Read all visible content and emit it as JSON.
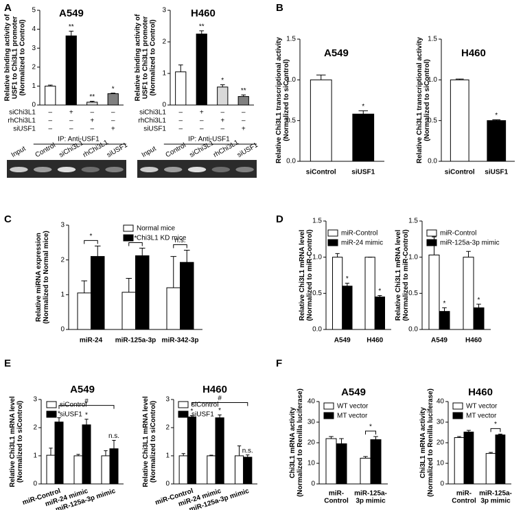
{
  "panel_labels": [
    "A",
    "B",
    "C",
    "D",
    "E",
    "F"
  ],
  "chart_data": [
    {
      "type": "bar",
      "title": "A549",
      "ylabel": [
        "Relative binding activity of",
        "USF1 to Chi3L1 promoter",
        "(Normalized to Control)"
      ],
      "categories": [
        null,
        null,
        null,
        null
      ],
      "values": [
        1.0,
        3.65,
        0.15,
        0.6
      ],
      "errors": [
        0.05,
        0.25,
        0.05,
        0.03
      ],
      "colors": [
        "#ffffff",
        "#000000",
        "#d9d9d9",
        "#808080"
      ],
      "annotations": [
        null,
        "**",
        "**",
        "*"
      ],
      "ylim": [
        0,
        5
      ],
      "yticks": [
        0,
        1,
        2,
        3,
        4,
        5
      ],
      "conditions": [
        {
          "name": "siChi3L1",
          "signs": [
            "–",
            "+",
            "–",
            "–"
          ]
        },
        {
          "name": "rhChi3L1",
          "signs": [
            "–",
            "–",
            "+",
            "–"
          ]
        },
        {
          "name": "siUSF1",
          "signs": [
            "–",
            "–",
            "–",
            "+"
          ]
        }
      ],
      "gel": {
        "header": "IP: Anti-USF1",
        "lanes": [
          "Input",
          "Control",
          "siChi3L1",
          "rhChi3L1",
          "siUSF1"
        ]
      }
    },
    {
      "type": "bar",
      "title": "H460",
      "ylabel": [
        "Relative binding activity of",
        "USF1 to Chi3L1 promoter",
        "(Normalized to Control)"
      ],
      "categories": [
        null,
        null,
        null,
        null
      ],
      "values": [
        1.05,
        2.25,
        0.57,
        0.27
      ],
      "errors": [
        0.22,
        0.1,
        0.07,
        0.05
      ],
      "colors": [
        "#ffffff",
        "#000000",
        "#d9d9d9",
        "#808080"
      ],
      "annotations": [
        null,
        "**",
        "*",
        "**"
      ],
      "ylim": [
        0,
        3
      ],
      "yticks": [
        0,
        1,
        2,
        3
      ],
      "conditions": [
        {
          "name": "siChi3L1",
          "signs": [
            "–",
            "+",
            "–",
            "–"
          ]
        },
        {
          "name": "rhChi3L1",
          "signs": [
            "–",
            "–",
            "+",
            "–"
          ]
        },
        {
          "name": "siUSF1",
          "signs": [
            "–",
            "–",
            "–",
            "+"
          ]
        }
      ],
      "gel": {
        "header": "IP: Anti-USF1",
        "lanes": [
          "Input",
          "Control",
          "siChi3L1",
          "rhChi3L1",
          "siUSF1"
        ]
      }
    },
    {
      "type": "bar",
      "title": "A549",
      "ylabel": [
        "Relative Chi3L1 transcriptional activity",
        "(Normalized to siControl)"
      ],
      "categories": [
        "siControl",
        "siUSF1"
      ],
      "values": [
        1.0,
        0.58
      ],
      "errors": [
        0.06,
        0.04
      ],
      "colors": [
        "#ffffff",
        "#000000"
      ],
      "annotations": [
        null,
        "*"
      ],
      "ylim": [
        0,
        1.5
      ],
      "yticks": [
        {
          "value": 0,
          "label": "0.0"
        },
        0.5,
        {
          "value": 1,
          "label": "1.0"
        },
        1.5
      ]
    },
    {
      "type": "bar",
      "title": "H460",
      "ylabel": [
        "Relative Chi3L1 transcriptional activity",
        "(Normalized to siControl)"
      ],
      "categories": [
        "siControl",
        "siUSF1"
      ],
      "values": [
        1.0,
        0.5
      ],
      "errors": [
        0.01,
        0.01
      ],
      "colors": [
        "#ffffff",
        "#000000"
      ],
      "annotations": [
        null,
        "*"
      ],
      "ylim": [
        0,
        1.5
      ],
      "yticks": [
        {
          "value": 0,
          "label": "0.0"
        },
        0.5,
        {
          "value": 1,
          "label": "1.0"
        },
        1.5
      ]
    },
    {
      "type": "bar",
      "ylabel": [
        "Relative miRNA expression",
        "(Normalized to Normal mice)"
      ],
      "categories": [
        "miR-24",
        "miR-125a-3p",
        "miR-342-3p"
      ],
      "series": [
        {
          "name": "Normal mice",
          "color": "#ffffff",
          "values": [
            1.05,
            1.07,
            1.2
          ],
          "errors": [
            0.35,
            0.4,
            0.9
          ]
        },
        {
          "name": "Chi3L1 KD mice",
          "color": "#000000",
          "values": [
            2.1,
            2.12,
            1.93
          ],
          "errors": [
            0.3,
            0.22,
            0.35
          ]
        }
      ],
      "brackets": [
        {
          "label": "*",
          "from": [
            0,
            0
          ],
          "to": [
            1,
            0
          ]
        },
        {
          "label": "*",
          "from": [
            0,
            1
          ],
          "to": [
            1,
            1
          ]
        },
        {
          "label": "n.s.",
          "from": [
            0,
            2
          ],
          "to": [
            1,
            2
          ]
        }
      ],
      "ylim": [
        0,
        3
      ],
      "yticks": [
        0,
        1,
        2,
        3
      ]
    },
    {
      "type": "bar",
      "ylabel": [
        "Relative Chi3L1 mRNA level",
        "(Normalized to miR-Control)"
      ],
      "categories": [
        "A549",
        "H460"
      ],
      "series": [
        {
          "name": "miR-Control",
          "color": "#ffffff",
          "values": [
            1.0,
            1.0
          ],
          "errors": [
            0.05,
            0
          ]
        },
        {
          "name": "miR-24 mimic",
          "color": "#000000",
          "values": [
            0.6,
            0.45
          ],
          "errors": [
            0.04,
            0.02
          ],
          "annotations": [
            "*",
            "*"
          ]
        }
      ],
      "ylim": [
        0,
        1.5
      ],
      "yticks": [
        {
          "value": 0,
          "label": "0.0"
        },
        0.5,
        {
          "value": 1,
          "label": "1.0"
        },
        1.5
      ]
    },
    {
      "type": "bar",
      "ylabel": [
        "Relative Chi3L1 mRNA level",
        "(Normalized to miR-Control)"
      ],
      "categories": [
        "A549",
        "H460"
      ],
      "series": [
        {
          "name": "miR-Control",
          "color": "#ffffff",
          "values": [
            1.03,
            1.0
          ],
          "errors": [
            0.25,
            0.08
          ]
        },
        {
          "name": "miR-125a-3p mimic",
          "color": "#000000",
          "values": [
            0.25,
            0.3
          ],
          "errors": [
            0.05,
            0.05
          ],
          "annotations": [
            "*",
            "*"
          ]
        }
      ],
      "ylim": [
        0,
        1.5
      ],
      "yticks": [
        {
          "value": 0,
          "label": "0.0"
        },
        0.5,
        {
          "value": 1,
          "label": "1.0"
        },
        1.5
      ]
    },
    {
      "type": "bar",
      "title": "A549",
      "ylabel": [
        "Relative Chi3L1 mRNA level",
        "(Normalized to siControl)"
      ],
      "categories": [
        "miR-Control",
        "miR-24 mimic",
        "miR-125a-3p mimic"
      ],
      "series": [
        {
          "name": "siControl",
          "color": "#ffffff",
          "values": [
            1.02,
            1.0,
            1.0
          ],
          "errors": [
            0.25,
            0.05,
            0.18
          ]
        },
        {
          "name": "siUSF1",
          "color": "#000000",
          "values": [
            2.2,
            2.1,
            1.25
          ],
          "errors": [
            0.15,
            0.2,
            0.3
          ],
          "annotations": [
            "*",
            "*",
            "n.s."
          ]
        }
      ],
      "brackets": [
        {
          "label": "#",
          "from": [
            1,
            0
          ],
          "to": [
            1,
            2
          ]
        }
      ],
      "ylim": [
        0,
        3
      ],
      "yticks": [
        0,
        1,
        2,
        3
      ]
    },
    {
      "type": "bar",
      "title": "H460",
      "ylabel": [
        "Relative Chi3L1 mRNA level",
        "(Normalized to siControl)"
      ],
      "categories": [
        "miR-Control",
        "miR-24 mimic",
        "miR-125a-3p mimic"
      ],
      "series": [
        {
          "name": "siControl",
          "color": "#ffffff",
          "values": [
            1.0,
            1.0,
            1.0
          ],
          "errors": [
            0.08,
            0.02,
            0.35
          ]
        },
        {
          "name": "siUSF1",
          "color": "#000000",
          "values": [
            2.38,
            2.35,
            0.95
          ],
          "errors": [
            0.05,
            0.1,
            0.08
          ],
          "annotations": [
            "*",
            "*",
            "n.s."
          ]
        }
      ],
      "brackets": [
        {
          "label": "#",
          "from": [
            1,
            0
          ],
          "to": [
            1,
            2
          ]
        }
      ],
      "ylim": [
        0,
        3
      ],
      "yticks": [
        0,
        1,
        2,
        3
      ]
    },
    {
      "type": "bar",
      "title": "A549",
      "ylabel": [
        "Chi3L1 mRNA activity",
        "(Normalized to Renilla luciferase)"
      ],
      "categories": [
        [
          "miR-",
          "Control"
        ],
        [
          "miR-125a-",
          "3p mimic"
        ]
      ],
      "series": [
        {
          "name": "WT vector",
          "color": "#ffffff",
          "values": [
            22,
            12.5
          ],
          "errors": [
            1,
            0.8
          ]
        },
        {
          "name": "MT vector",
          "color": "#000000",
          "values": [
            19.5,
            21.5
          ],
          "errors": [
            2.5,
            1.5
          ]
        }
      ],
      "brackets": [
        {
          "label": "*",
          "from": [
            0,
            1
          ],
          "to": [
            1,
            1
          ]
        }
      ],
      "ylim": [
        0,
        40
      ],
      "yticks": [
        0,
        10,
        20,
        30,
        40
      ]
    },
    {
      "type": "bar",
      "title": "H460",
      "ylabel": [
        "Chi3L1 mRNA activity",
        "(Normalized to Renilla luciferase)"
      ],
      "categories": [
        [
          "miR-",
          "Control"
        ],
        [
          "miR-125a-",
          "3p mimic"
        ]
      ],
      "series": [
        {
          "name": "WT vector",
          "color": "#ffffff",
          "values": [
            22.5,
            14.8
          ],
          "errors": [
            0.5,
            0.5
          ]
        },
        {
          "name": "MT vector",
          "color": "#000000",
          "values": [
            25.2,
            23.8
          ],
          "errors": [
            0.8,
            0.4
          ]
        }
      ],
      "brackets": [
        {
          "label": "*",
          "from": [
            0,
            1
          ],
          "to": [
            1,
            1
          ]
        }
      ],
      "ylim": [
        0,
        40
      ],
      "yticks": [
        0,
        10,
        20,
        30,
        40
      ]
    }
  ]
}
